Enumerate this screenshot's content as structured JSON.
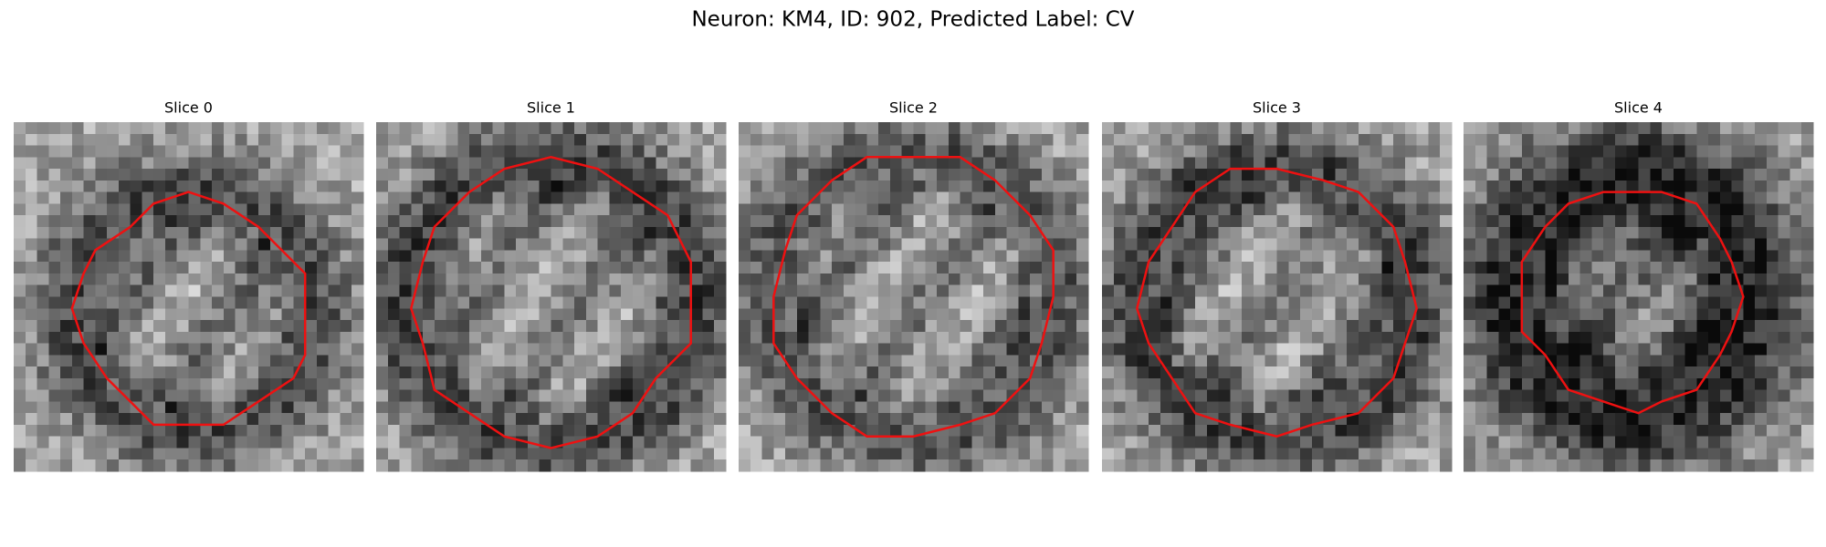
{
  "title": "Neuron: KM4, ID: 902, Predicted Label: CV",
  "panels": [
    {
      "label": "Slice 0"
    },
    {
      "label": "Slice 1"
    },
    {
      "label": "Slice 2"
    },
    {
      "label": "Slice 3"
    },
    {
      "label": "Slice 4"
    }
  ]
}
